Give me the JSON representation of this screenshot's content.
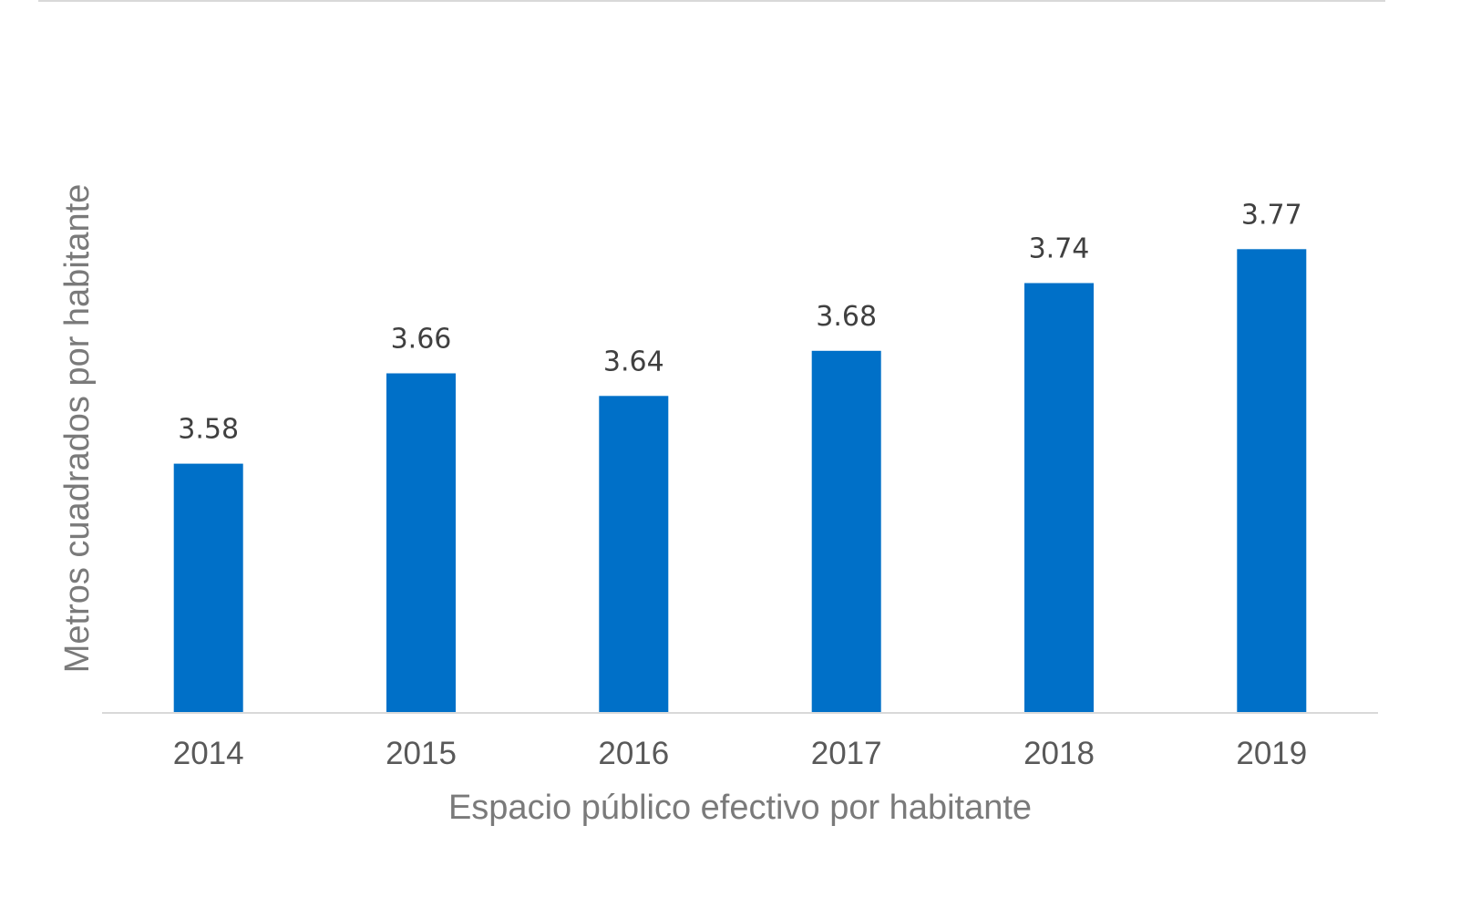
{
  "chart_data": {
    "type": "bar",
    "title": "",
    "xlabel": "Espacio público efectivo por habitante",
    "ylabel": "Metros cuadrados por habitante",
    "categories": [
      "2014",
      "2015",
      "2016",
      "2017",
      "2018",
      "2019"
    ],
    "values": [
      3.58,
      3.66,
      3.64,
      3.68,
      3.74,
      3.77
    ],
    "value_labels": [
      "3.58",
      "3.66",
      "3.64",
      "3.68",
      "3.74",
      "3.77"
    ],
    "ylim": [
      3.36,
      3.91
    ],
    "grid": false,
    "legend": "none",
    "colors": {
      "bar": "#0070C8",
      "axis_line": "#d9d9d9"
    }
  }
}
